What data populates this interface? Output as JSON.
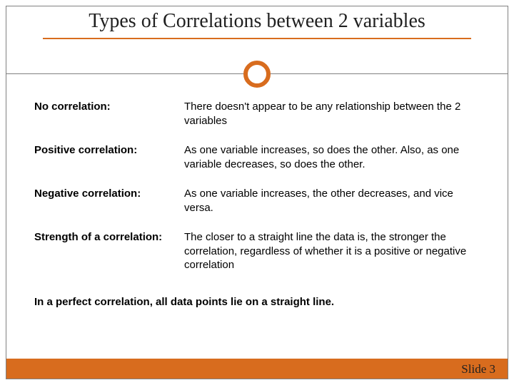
{
  "title": "Types of Correlations between 2 variables",
  "rows": [
    {
      "label": "No correlation:",
      "desc": "There doesn't appear to be any relationship between the 2 variables"
    },
    {
      "label": "Positive correlation:",
      "desc": "As one variable increases, so does the other.  Also, as one variable decreases, so does the other."
    },
    {
      "label": "Negative correlation:",
      "desc": "As one variable increases, the other decreases, and vice versa."
    }
  ],
  "strength": {
    "label": "Strength of a correlation: ",
    "desc": "The closer to a straight line the data is, the stronger the correlation, regardless of whether it is a positive or negative correlation"
  },
  "perfect": "In a perfect correlation, all data points lie on a straight line.",
  "slide_label": "Slide 3",
  "colors": {
    "accent": "#d86c1e",
    "border": "#808080",
    "text": "#000000",
    "title_text": "#202020",
    "background": "#ffffff"
  }
}
